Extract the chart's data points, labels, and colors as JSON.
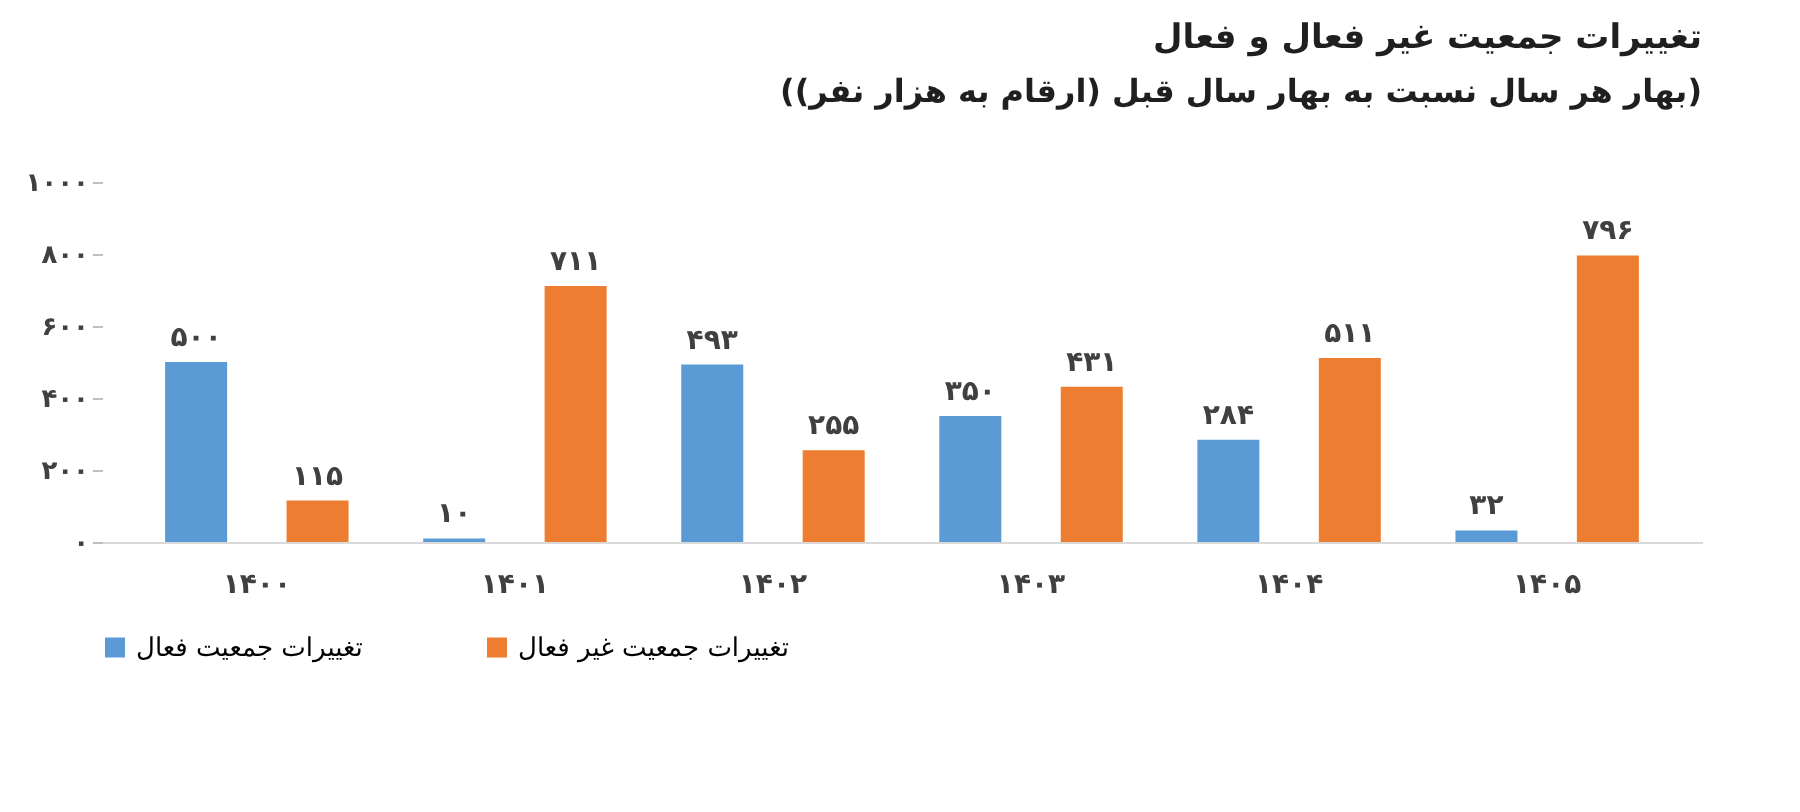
{
  "chart_data": {
    "type": "bar",
    "title": "تغییرات جمعیت غیر فعال و فعال",
    "subtitle": "(بهار هر سال نسبت به بهار سال قبل (ارقام به هزار نفر))",
    "categories": [
      "۱۴۰۰",
      "۱۴۰۱",
      "۱۴۰۲",
      "۱۴۰۳",
      "۱۴۰۴",
      "۱۴۰۵"
    ],
    "series": [
      {
        "name": "تغییرات جمعیت فعال",
        "color": "#5b9bd5",
        "values": [
          500,
          10,
          493,
          350,
          284,
          32
        ],
        "value_labels": [
          "۵۰۰",
          "۱۰",
          "۴۹۳",
          "۳۵۰",
          "۲۸۴",
          "۳۲"
        ]
      },
      {
        "name": "تغییرات جمعیت غیر فعال",
        "color": "#ed7d31",
        "values": [
          115,
          711,
          255,
          431,
          511,
          796
        ],
        "value_labels": [
          "۱۱۵",
          "۷۱۱",
          "۲۵۵",
          "۴۳۱",
          "۵۱۱",
          "۷۹۶"
        ]
      }
    ],
    "ylim": [
      0,
      1000
    ],
    "yticks": [
      {
        "value": 0,
        "label": "۰"
      },
      {
        "value": 200,
        "label": "۲۰۰"
      },
      {
        "value": 400,
        "label": "۴۰۰"
      },
      {
        "value": 600,
        "label": "۶۰۰"
      },
      {
        "value": 800,
        "label": "۸۰۰"
      },
      {
        "value": 1000,
        "label": "۱۰۰۰"
      }
    ],
    "grid": false,
    "legend": "bottom"
  }
}
